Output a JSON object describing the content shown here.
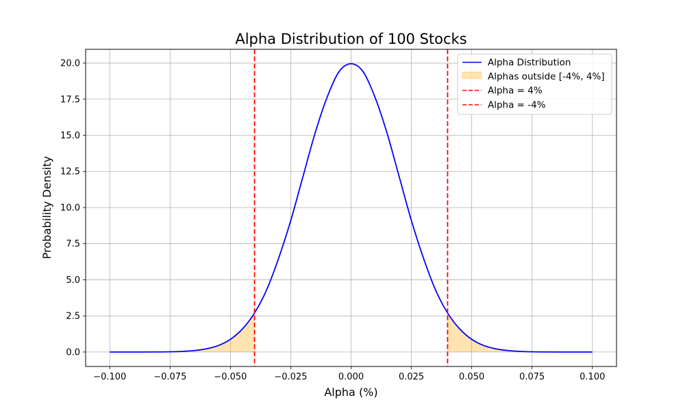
{
  "chart_data": {
    "type": "area",
    "title": "Alpha Distribution of 100 Stocks",
    "xlabel": "Alpha (%)",
    "ylabel": "Probability Density",
    "xlim": [
      -0.11,
      0.11
    ],
    "ylim": [
      -1.0,
      20.95
    ],
    "grid": true,
    "legend_position": "top-right",
    "x_ticks": [
      -0.1,
      -0.075,
      -0.05,
      -0.025,
      0.0,
      0.025,
      0.05,
      0.075,
      0.1
    ],
    "x_tick_labels": [
      "−0.100",
      "−0.075",
      "−0.050",
      "−0.025",
      "0.000",
      "0.025",
      "0.050",
      "0.075",
      "0.100"
    ],
    "y_ticks": [
      0,
      2.5,
      5,
      7.5,
      10,
      12.5,
      15,
      17.5,
      20
    ],
    "y_tick_labels": [
      "0.0",
      "2.5",
      "5.0",
      "7.5",
      "10.0",
      "12.5",
      "15.0",
      "17.5",
      "20.0"
    ],
    "series": [
      {
        "name": "Alpha Distribution",
        "kind": "line",
        "color": "#0000ff",
        "x": [
          -0.1,
          -0.09,
          -0.08,
          -0.075,
          -0.07,
          -0.065,
          -0.06,
          -0.055,
          -0.05,
          -0.045,
          -0.04,
          -0.035,
          -0.03,
          -0.025,
          -0.02,
          -0.015,
          -0.01,
          -0.005,
          0.0,
          0.005,
          0.01,
          0.015,
          0.02,
          0.025,
          0.03,
          0.035,
          0.04,
          0.045,
          0.05,
          0.055,
          0.06,
          0.065,
          0.07,
          0.075,
          0.08,
          0.09,
          0.1
        ],
        "y": [
          0.0,
          0.0009,
          0.0067,
          0.0176,
          0.044,
          0.1014,
          0.2216,
          0.4484,
          0.8764,
          1.6,
          2.7,
          4.3,
          6.5,
          9.1,
          12.1,
          15.1,
          17.6,
          19.4,
          19.95,
          19.4,
          17.6,
          15.1,
          12.1,
          9.1,
          6.5,
          4.3,
          2.7,
          1.6,
          0.8764,
          0.4484,
          0.2216,
          0.1014,
          0.044,
          0.0176,
          0.0067,
          0.0009,
          0.0
        ]
      },
      {
        "name": "Alphas outside [-4%, 4%]",
        "kind": "fill",
        "color": "#ffa500",
        "alpha": 0.3,
        "ranges": [
          [
            -0.1,
            -0.04
          ],
          [
            0.04,
            0.1
          ]
        ]
      },
      {
        "name": "Alpha = 4%",
        "kind": "vline",
        "color": "#ff0000",
        "x": 0.04
      },
      {
        "name": "Alpha = -4%",
        "kind": "vline",
        "color": "#ff0000",
        "x": -0.04
      }
    ]
  }
}
